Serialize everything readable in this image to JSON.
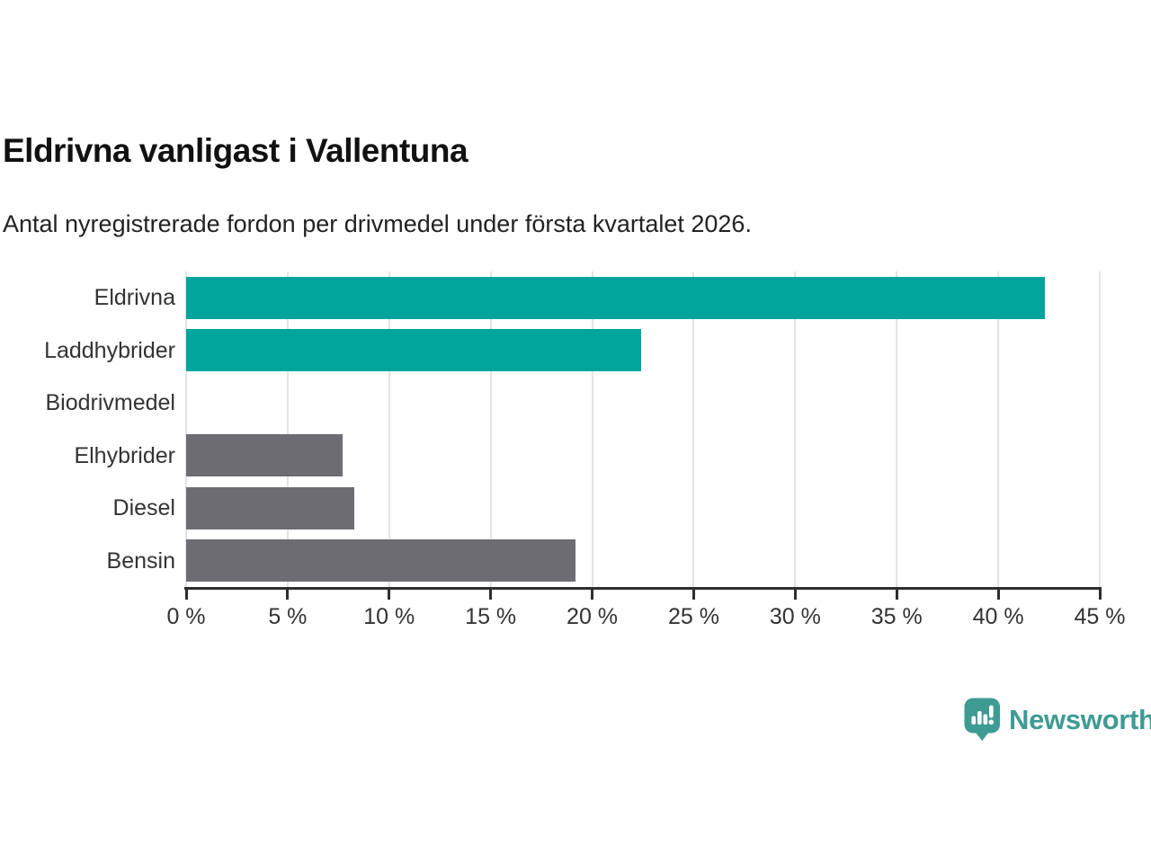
{
  "header": {
    "title": "Eldrivna vanligast i Vallentuna",
    "subtitle": "Antal nyregistrerade fordon per drivmedel under första kvartalet 2026."
  },
  "chart_data": {
    "type": "bar",
    "orientation": "horizontal",
    "title": "Eldrivna vanligast i Vallentuna",
    "subtitle": "Antal nyregistrerade fordon per drivmedel under första kvartalet 2026.",
    "categories": [
      "Eldrivna",
      "Laddhybrider",
      "Biodrivmedel",
      "Elhybrider",
      "Diesel",
      "Bensin"
    ],
    "values": [
      42.3,
      22.4,
      0,
      7.7,
      8.3,
      19.2
    ],
    "bar_colors": [
      "#00a49b",
      "#00a49b",
      "#6c6c72",
      "#6c6c72",
      "#6c6c72",
      "#6c6c72"
    ],
    "unit": "%",
    "xlabel": "",
    "ylabel": "",
    "xlim": [
      0,
      45
    ],
    "x_ticks": [
      0,
      5,
      10,
      15,
      20,
      25,
      30,
      35,
      40,
      45
    ],
    "x_tick_suffix": " %",
    "grid": true,
    "legend": "none",
    "colors": {
      "highlight_bar": "#00a49b",
      "default_bar": "#6c6c72",
      "gridline": "#e4e4e4",
      "axis": "#2e2e2e",
      "tick_label": "#333333",
      "category_label": "#333333",
      "title": "#111111",
      "subtitle": "#222222",
      "background": "#ffffff"
    }
  },
  "footer": {
    "brand": "Newsworthy",
    "brand_color": "#3e9b94",
    "logo_icon": "newsworthy-speech-bubble-bar-chart-icon"
  }
}
